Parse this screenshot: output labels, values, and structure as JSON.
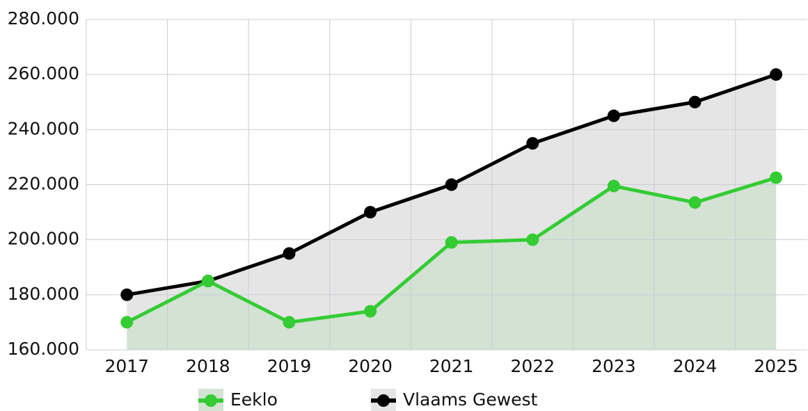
{
  "chart_data": {
    "type": "line",
    "area": true,
    "categories": [
      "2017",
      "2018",
      "2019",
      "2020",
      "2021",
      "2022",
      "2023",
      "2024",
      "2025"
    ],
    "series": [
      {
        "name": "Eeklo",
        "color": "#33cc33",
        "fill_color": "#d3e2d3",
        "values": [
          170000,
          185000,
          170000,
          174000,
          199000,
          200000,
          219500,
          213500,
          222500
        ]
      },
      {
        "name": "Vlaams Gewest",
        "color": "#000000",
        "fill_color": "#e5e5e5",
        "values": [
          180000,
          185000,
          195000,
          210000,
          220000,
          235000,
          245000,
          250000,
          260000
        ]
      }
    ],
    "ylim": [
      160000,
      280000
    ],
    "yticks": [
      {
        "value": 160000,
        "label": "160.000"
      },
      {
        "value": 180000,
        "label": "180.000"
      },
      {
        "value": 200000,
        "label": "200.000"
      },
      {
        "value": 220000,
        "label": "220.000"
      },
      {
        "value": 240000,
        "label": "240.000"
      },
      {
        "value": 260000,
        "label": "260.000"
      },
      {
        "value": 280000,
        "label": "280.000"
      }
    ],
    "grid": true
  }
}
